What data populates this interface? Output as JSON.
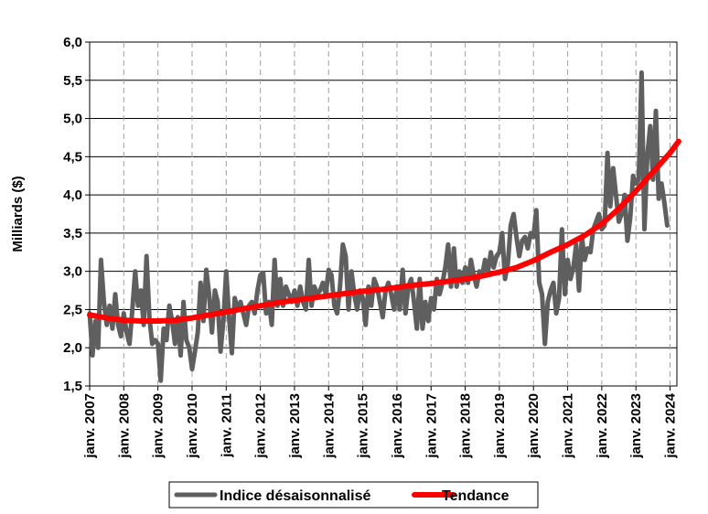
{
  "chart_data": {
    "type": "line",
    "title": "",
    "xlabel": "",
    "ylabel": "Milliards ($)",
    "ylim": [
      1.5,
      6.0
    ],
    "yticks": [
      "1,5",
      "2,0",
      "2,5",
      "3,0",
      "3,5",
      "4,0",
      "4,5",
      "5,0",
      "5,5",
      "6,0"
    ],
    "xticks": [
      "janv. 2007",
      "janv. 2008",
      "janv. 2009",
      "janv. 2010",
      "janv. 2011",
      "janv. 2012",
      "janv. 2013",
      "janv. 2014",
      "janv. 2015",
      "janv. 2016",
      "janv. 2017",
      "janv. 2018",
      "janv. 2019",
      "janv. 2020",
      "janv. 2021",
      "janv. 2022",
      "janv. 2023",
      "janv. 2024"
    ],
    "xrange_years": [
      2007.0,
      2024.2
    ],
    "grid": {
      "horizontal": true,
      "vertical_dashed": true
    },
    "legend_position": "bottom-center",
    "series": [
      {
        "name": "Indice désaisonnalisé",
        "color": "#5f5f5f",
        "x": [
          2007.0,
          2007.083,
          2007.167,
          2007.25,
          2007.333,
          2007.417,
          2007.5,
          2007.583,
          2007.667,
          2007.75,
          2007.833,
          2007.917,
          2008.0,
          2008.083,
          2008.167,
          2008.25,
          2008.333,
          2008.417,
          2008.5,
          2008.583,
          2008.667,
          2008.75,
          2008.833,
          2008.917,
          2009.0,
          2009.083,
          2009.167,
          2009.25,
          2009.333,
          2009.417,
          2009.5,
          2009.583,
          2009.667,
          2009.75,
          2009.833,
          2009.917,
          2010.0,
          2010.083,
          2010.167,
          2010.25,
          2010.333,
          2010.417,
          2010.5,
          2010.583,
          2010.667,
          2010.75,
          2010.833,
          2010.917,
          2011.0,
          2011.083,
          2011.167,
          2011.25,
          2011.333,
          2011.417,
          2011.5,
          2011.583,
          2011.667,
          2011.75,
          2011.833,
          2011.917,
          2012.0,
          2012.083,
          2012.167,
          2012.25,
          2012.333,
          2012.417,
          2012.5,
          2012.583,
          2012.667,
          2012.75,
          2012.833,
          2012.917,
          2013.0,
          2013.083,
          2013.167,
          2013.25,
          2013.333,
          2013.417,
          2013.5,
          2013.583,
          2013.667,
          2013.75,
          2013.833,
          2013.917,
          2014.0,
          2014.083,
          2014.167,
          2014.25,
          2014.333,
          2014.417,
          2014.5,
          2014.583,
          2014.667,
          2014.75,
          2014.833,
          2014.917,
          2015.0,
          2015.083,
          2015.167,
          2015.25,
          2015.333,
          2015.417,
          2015.5,
          2015.583,
          2015.667,
          2015.75,
          2015.833,
          2015.917,
          2016.0,
          2016.083,
          2016.167,
          2016.25,
          2016.333,
          2016.417,
          2016.5,
          2016.583,
          2016.667,
          2016.75,
          2016.833,
          2016.917,
          2017.0,
          2017.083,
          2017.167,
          2017.25,
          2017.333,
          2017.417,
          2017.5,
          2017.583,
          2017.667,
          2017.75,
          2017.833,
          2017.917,
          2018.0,
          2018.083,
          2018.167,
          2018.25,
          2018.333,
          2018.417,
          2018.5,
          2018.583,
          2018.667,
          2018.75,
          2018.833,
          2018.917,
          2019.0,
          2019.083,
          2019.167,
          2019.25,
          2019.333,
          2019.417,
          2019.5,
          2019.583,
          2019.667,
          2019.75,
          2019.833,
          2019.917,
          2020.0,
          2020.083,
          2020.167,
          2020.25,
          2020.333,
          2020.417,
          2020.5,
          2020.583,
          2020.667,
          2020.75,
          2020.833,
          2020.917,
          2021.0,
          2021.083,
          2021.167,
          2021.25,
          2021.333,
          2021.417,
          2021.5,
          2021.583,
          2021.667,
          2021.75,
          2021.833,
          2021.917,
          2022.0,
          2022.083,
          2022.167,
          2022.25,
          2022.333,
          2022.417,
          2022.5,
          2022.583,
          2022.667,
          2022.75,
          2022.833,
          2022.917,
          2023.0,
          2023.083,
          2023.167,
          2023.25,
          2023.333,
          2023.417,
          2023.5,
          2023.583,
          2023.667,
          2023.75,
          2023.833,
          2023.917
        ],
        "values": [
          2.45,
          1.9,
          2.35,
          2.0,
          3.15,
          2.6,
          2.3,
          2.55,
          2.25,
          2.7,
          2.3,
          2.15,
          2.45,
          2.2,
          2.05,
          2.5,
          3.0,
          2.55,
          2.75,
          2.3,
          3.2,
          2.4,
          2.05,
          2.1,
          2.05,
          1.57,
          2.25,
          2.1,
          2.55,
          2.35,
          2.05,
          2.4,
          1.9,
          2.6,
          2.1,
          2.0,
          1.72,
          1.95,
          2.2,
          2.85,
          2.35,
          3.02,
          2.7,
          2.2,
          2.75,
          2.6,
          1.95,
          2.35,
          3.0,
          2.4,
          1.93,
          2.65,
          2.5,
          2.6,
          2.45,
          2.3,
          2.55,
          2.6,
          2.45,
          2.75,
          2.95,
          2.98,
          2.45,
          2.6,
          2.3,
          3.15,
          2.55,
          2.9,
          2.55,
          2.8,
          2.7,
          2.6,
          2.75,
          2.55,
          2.8,
          2.6,
          2.5,
          3.15,
          2.55,
          2.8,
          2.7,
          2.75,
          2.85,
          2.7,
          3.02,
          2.95,
          2.55,
          2.45,
          2.8,
          3.35,
          3.2,
          2.5,
          3.0,
          2.7,
          2.5,
          2.75,
          2.65,
          2.3,
          2.8,
          2.55,
          2.9,
          2.8,
          2.6,
          2.4,
          2.75,
          2.85,
          2.7,
          2.5,
          2.8,
          2.5,
          3.02,
          2.45,
          2.8,
          2.9,
          2.6,
          2.25,
          2.9,
          2.25,
          2.6,
          2.35,
          2.65,
          2.5,
          2.9,
          2.7,
          2.85,
          3.05,
          3.35,
          2.8,
          3.3,
          2.8,
          3.0,
          2.85,
          3.05,
          2.85,
          3.15,
          2.95,
          2.8,
          3.0,
          2.95,
          3.15,
          3.0,
          3.25,
          3.05,
          3.2,
          3.25,
          3.5,
          2.9,
          3.1,
          3.6,
          3.75,
          3.45,
          3.2,
          3.4,
          3.45,
          3.3,
          3.5,
          3.45,
          3.8,
          2.85,
          2.7,
          2.05,
          2.6,
          2.75,
          2.85,
          2.45,
          2.65,
          3.55,
          2.7,
          3.15,
          2.9,
          3.05,
          3.35,
          2.75,
          3.45,
          3.15,
          3.3,
          3.25,
          3.55,
          3.65,
          3.75,
          3.55,
          3.6,
          4.55,
          3.85,
          4.35,
          4.0,
          3.65,
          3.75,
          4.0,
          3.4,
          3.7,
          4.25,
          4.15,
          4.2,
          5.6,
          3.55,
          4.5,
          4.9,
          4.2,
          5.1,
          3.95,
          4.15,
          3.9,
          3.6
        ]
      },
      {
        "name": "Tendance",
        "color": "#ff0000",
        "x": [
          2007.0,
          2007.5,
          2008.0,
          2008.5,
          2009.0,
          2009.5,
          2010.0,
          2010.5,
          2011.0,
          2011.5,
          2012.0,
          2012.5,
          2013.0,
          2013.5,
          2014.0,
          2014.5,
          2015.0,
          2015.5,
          2016.0,
          2016.5,
          2017.0,
          2017.5,
          2018.0,
          2018.5,
          2019.0,
          2019.5,
          2020.0,
          2020.5,
          2021.0,
          2021.5,
          2022.0,
          2022.5,
          2023.0,
          2023.5,
          2024.0,
          2024.25
        ],
        "values": [
          2.43,
          2.39,
          2.36,
          2.35,
          2.35,
          2.36,
          2.39,
          2.43,
          2.47,
          2.51,
          2.55,
          2.59,
          2.62,
          2.65,
          2.68,
          2.71,
          2.74,
          2.76,
          2.79,
          2.82,
          2.84,
          2.87,
          2.9,
          2.94,
          2.99,
          3.05,
          3.14,
          3.25,
          3.35,
          3.47,
          3.62,
          3.82,
          4.05,
          4.3,
          4.55,
          4.7
        ]
      }
    ]
  }
}
